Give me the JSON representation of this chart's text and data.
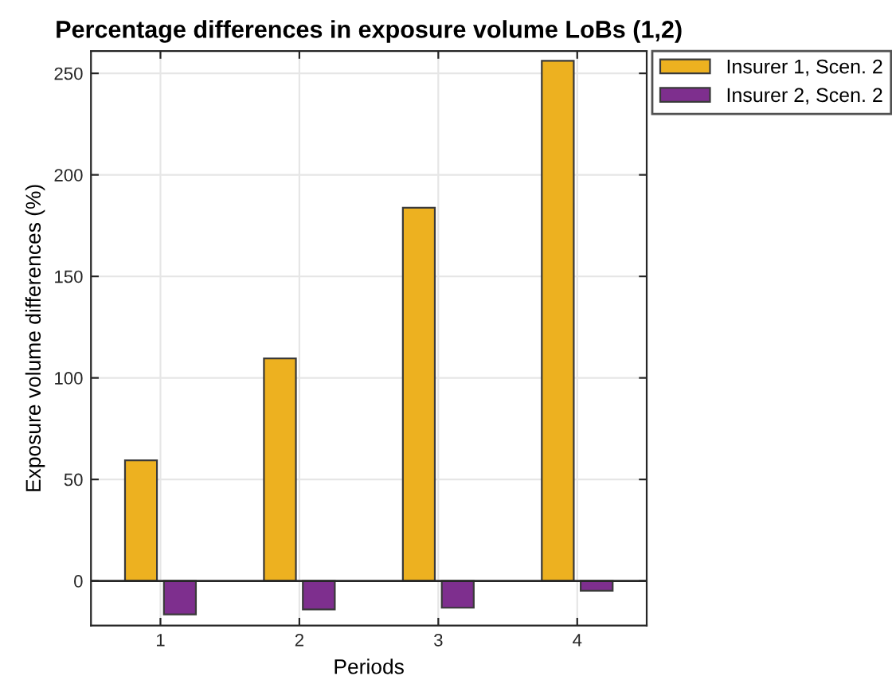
{
  "chart_data": {
    "type": "bar",
    "title": "Percentage differences in exposure volume LoBs (1,2)",
    "xlabel": "Periods",
    "ylabel": "Exposure volume differences (%)",
    "x": [
      1,
      2,
      3,
      4
    ],
    "series": [
      {
        "name": "Insurer 1, Scen. 2",
        "color": "#edb120",
        "values": [
          59.4,
          109.6,
          183.8,
          256.2
        ]
      },
      {
        "name": "Insurer 2, Scen. 2",
        "color": "#7e2f8e",
        "values": [
          -16.5,
          -14,
          -13.2,
          -4.8
        ]
      }
    ],
    "xlim": [
      0.5,
      4.5
    ],
    "xticks": [
      1,
      2,
      3,
      4
    ],
    "ylim": [
      -22,
      261
    ],
    "yticks": [
      0,
      50,
      100,
      150,
      200,
      250
    ],
    "ref_lines": [
      {
        "axis": "y",
        "value": 0,
        "color": "#262626"
      }
    ],
    "grid": true,
    "legend": "top right"
  }
}
